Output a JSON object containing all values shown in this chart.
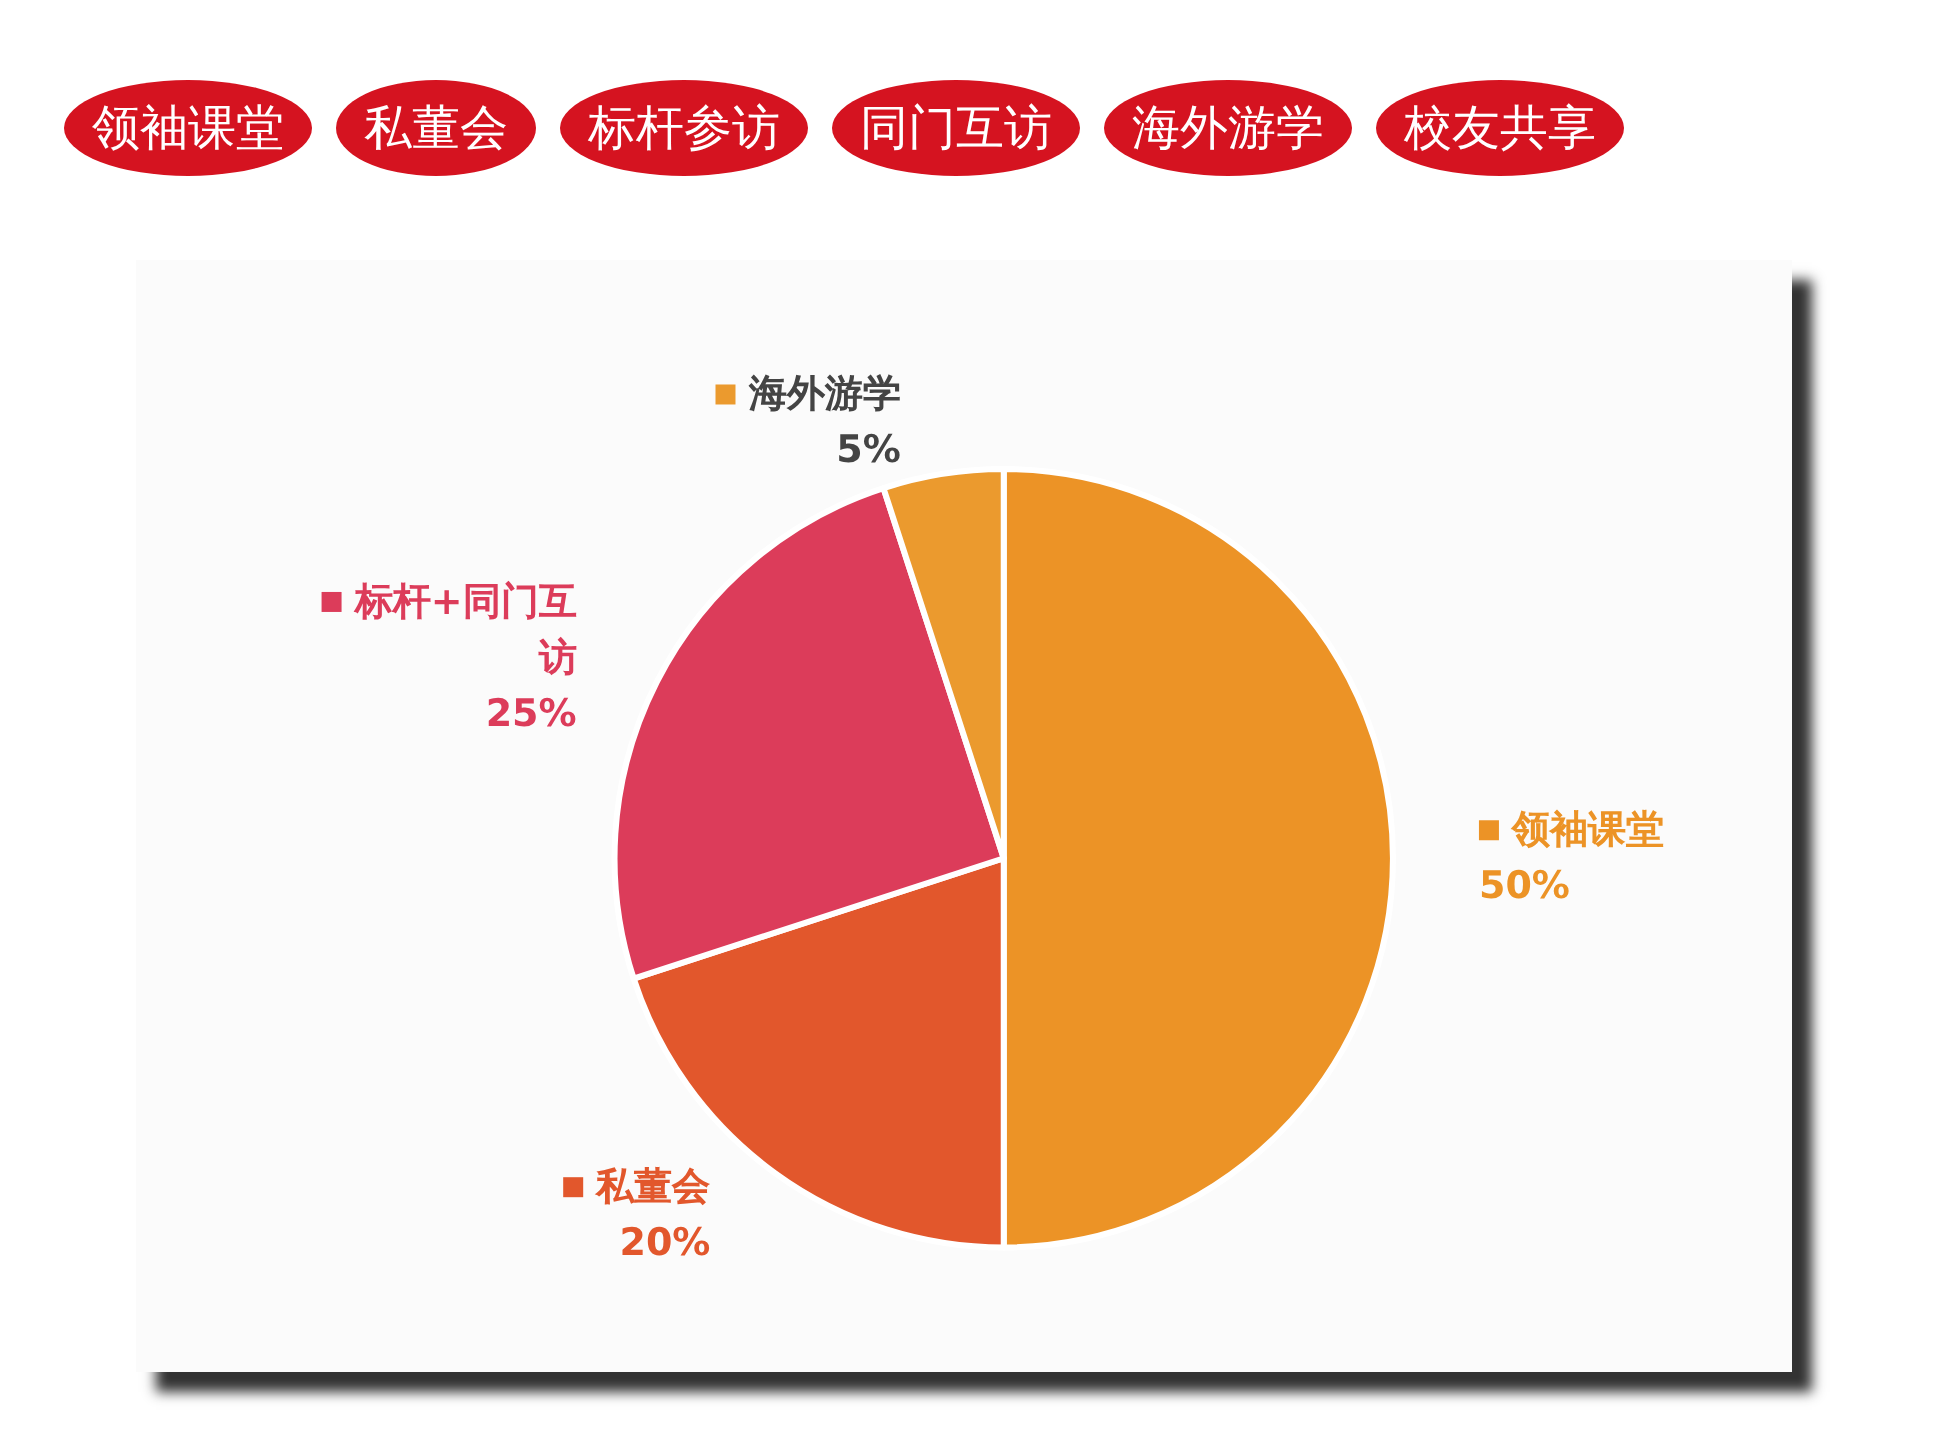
{
  "chart_data": {
    "type": "pie",
    "categories": [
      "领袖课堂",
      "私董会",
      "标杆+同门互访",
      "海外游学"
    ],
    "values": [
      50,
      20,
      25,
      5
    ],
    "value_labels": [
      "50%",
      "20%",
      "25%",
      "5%"
    ],
    "colors": [
      "#ec9326",
      "#e2572c",
      "#dc3c5a",
      "#eb9a2e"
    ],
    "legend": "right",
    "annotations": [
      "领袖课堂",
      "私董会",
      "标杆参访",
      "同门互访",
      "海外游学",
      "校友共享"
    ]
  }
}
